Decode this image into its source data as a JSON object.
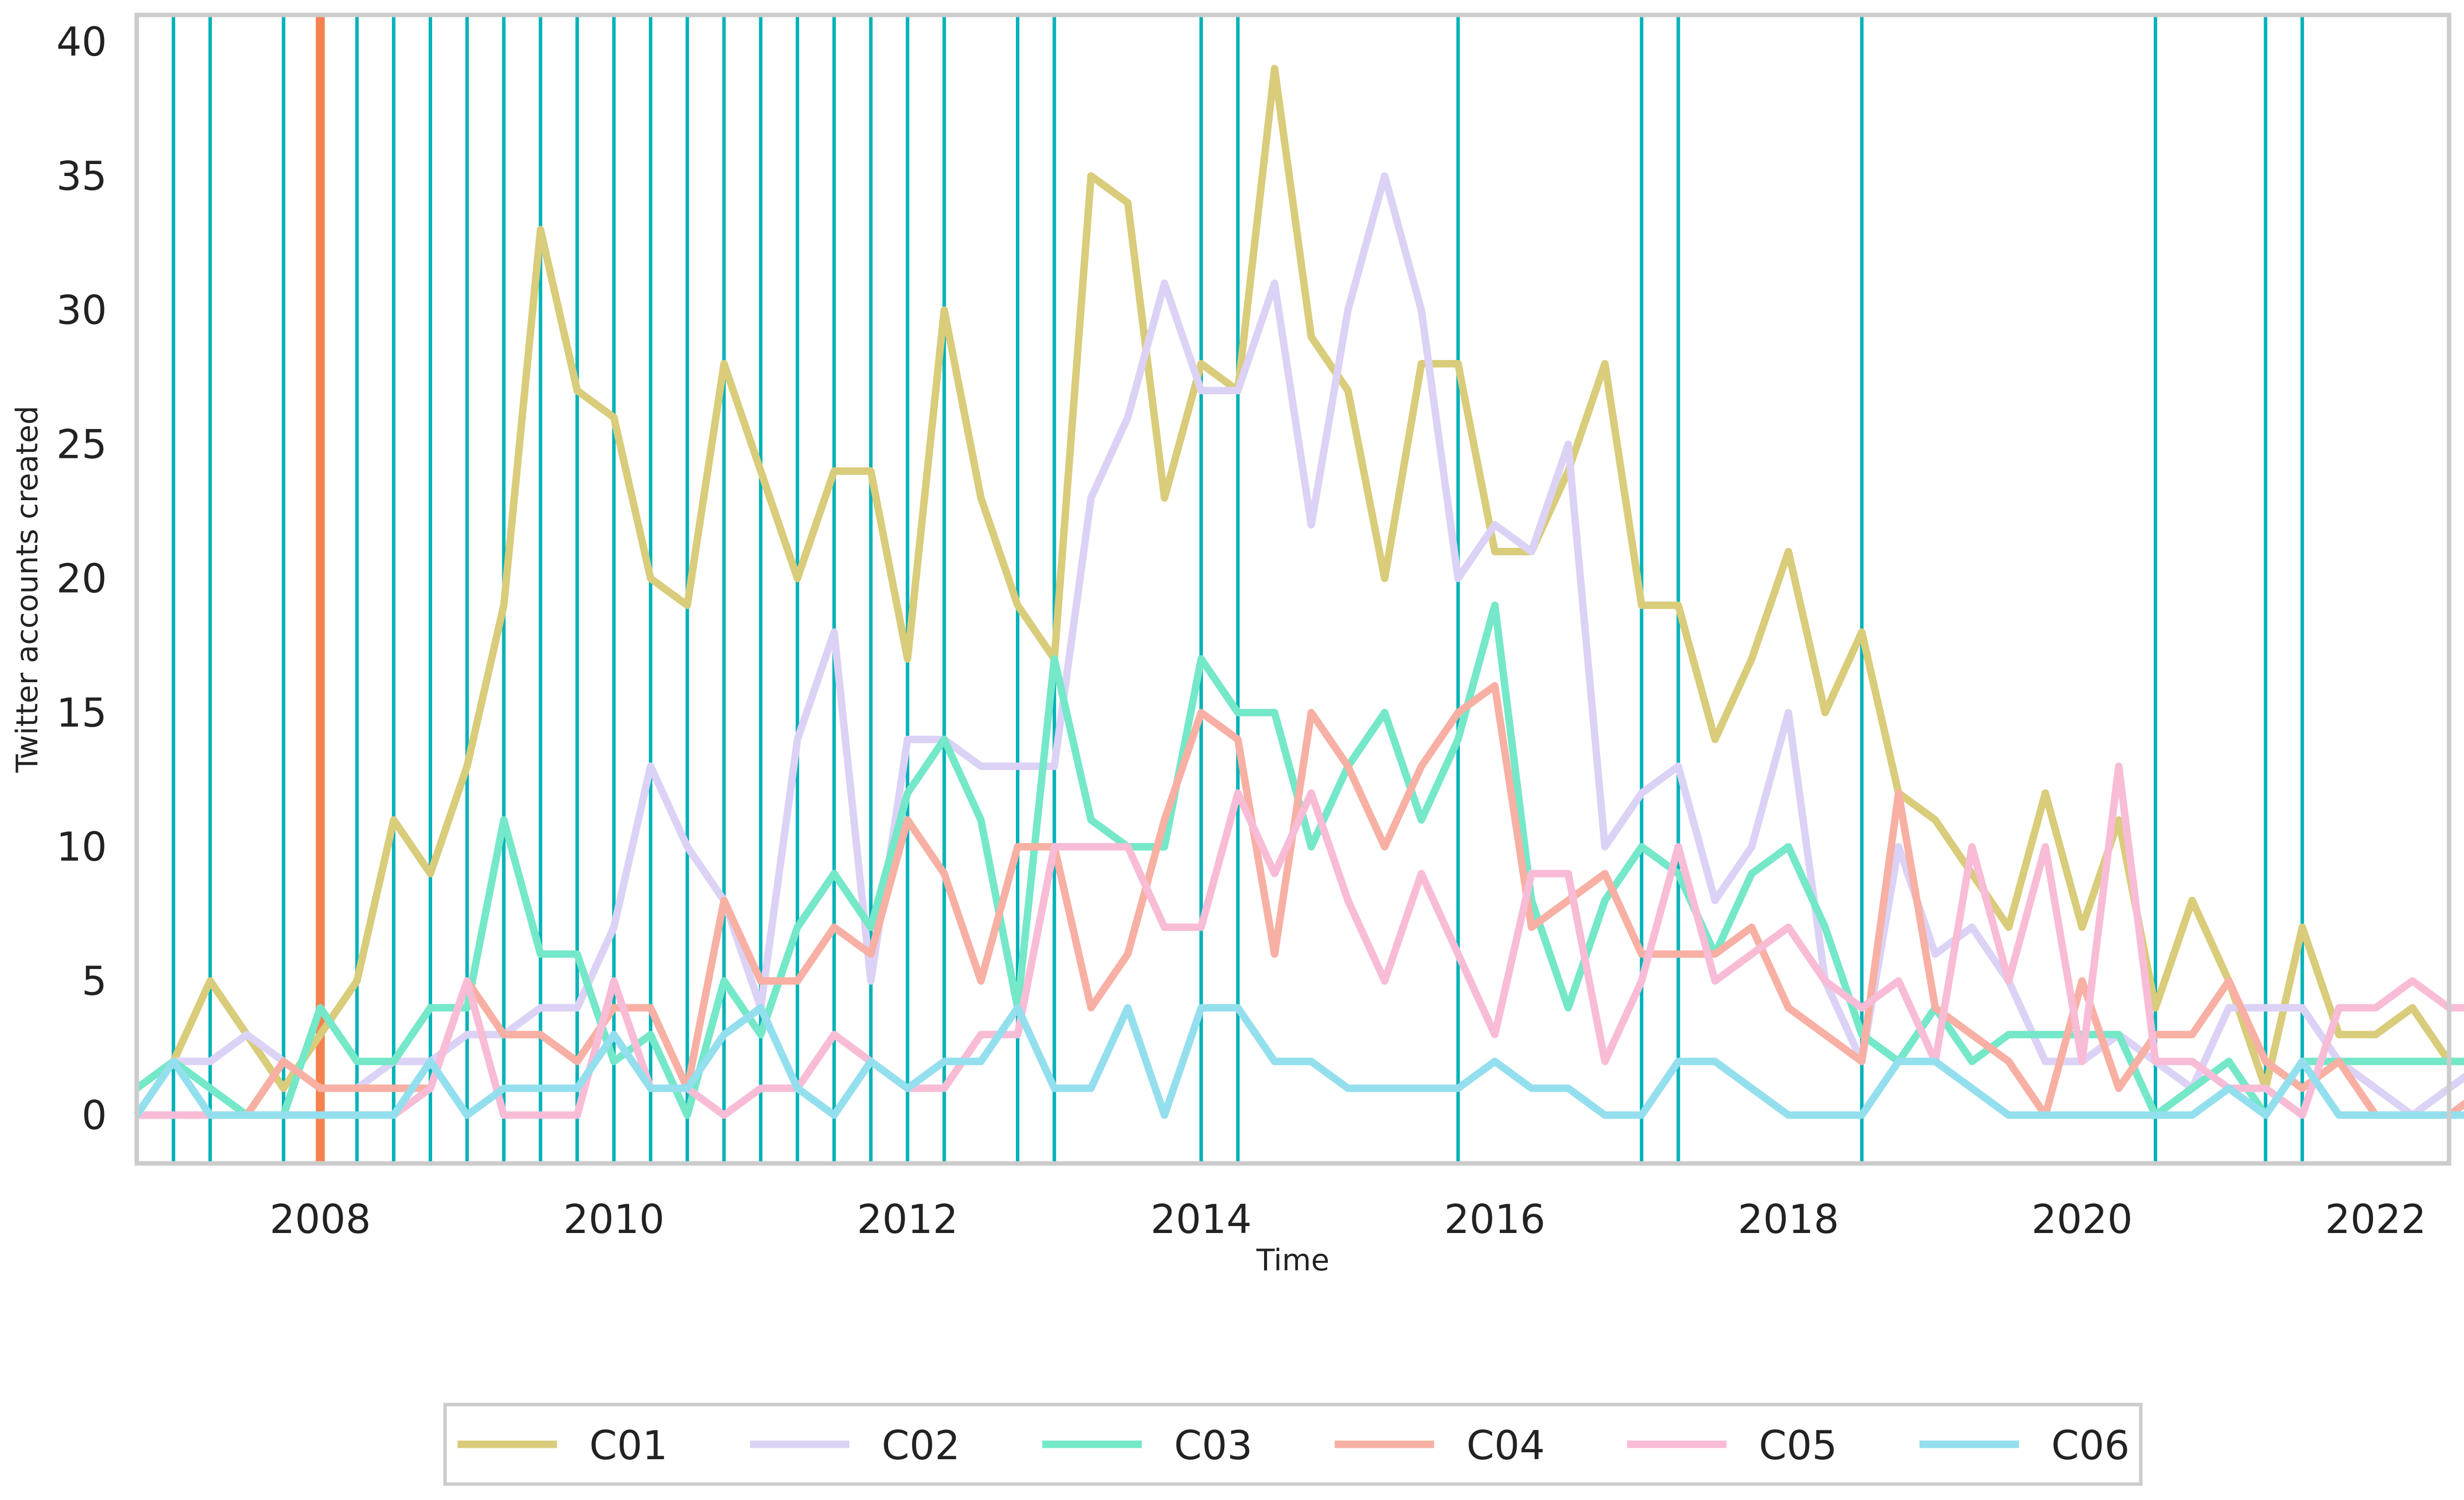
{
  "chart_data": {
    "type": "line",
    "title": "",
    "xlabel": "Time",
    "ylabel": "Twitter accounts created",
    "x_start": 2006.75,
    "x_step": 0.25,
    "xlim": [
      2006.75,
      2022.5
    ],
    "ylim": [
      -1.8,
      41
    ],
    "xticks": [
      2008,
      2010,
      2012,
      2014,
      2016,
      2018,
      2020,
      2022
    ],
    "yticks": [
      0,
      5,
      10,
      15,
      20,
      25,
      30,
      35,
      40
    ],
    "grid": false,
    "legend_position": "bottom-center",
    "series": [
      {
        "name": "C01",
        "color": "#d9cc7a",
        "values": [
          1,
          2,
          5,
          3,
          1,
          3,
          5,
          11,
          9,
          13,
          19,
          33,
          27,
          26,
          20,
          19,
          28,
          24,
          20,
          24,
          24,
          17,
          30,
          23,
          19,
          17,
          35,
          34,
          23,
          28,
          27,
          39,
          29,
          27,
          20,
          28,
          28,
          21,
          21,
          24,
          28,
          19,
          19,
          14,
          17,
          21,
          15,
          18,
          12,
          11,
          9,
          7,
          12,
          7,
          11,
          4,
          8,
          5,
          1,
          7,
          3,
          3,
          4,
          2,
          2
        ]
      },
      {
        "name": "C02",
        "color": "#dcd2f5",
        "values": [
          0,
          2,
          2,
          3,
          2,
          1,
          1,
          2,
          2,
          3,
          3,
          4,
          4,
          7,
          13,
          10,
          8,
          4,
          14,
          18,
          5,
          14,
          14,
          13,
          13,
          13,
          23,
          26,
          31,
          27,
          27,
          31,
          22,
          30,
          35,
          30,
          20,
          22,
          21,
          25,
          10,
          12,
          13,
          8,
          10,
          15,
          5,
          2,
          10,
          6,
          7,
          5,
          2,
          2,
          3,
          2,
          1,
          4,
          4,
          4,
          2,
          1,
          0,
          1,
          2
        ]
      },
      {
        "name": "C03",
        "color": "#74e8c8",
        "values": [
          1,
          2,
          1,
          0,
          0,
          4,
          2,
          2,
          4,
          4,
          11,
          6,
          6,
          2,
          3,
          0,
          5,
          3,
          7,
          9,
          7,
          12,
          14,
          11,
          4,
          17,
          11,
          10,
          10,
          17,
          15,
          15,
          10,
          13,
          15,
          11,
          14,
          19,
          8,
          4,
          8,
          10,
          9,
          6,
          9,
          10,
          7,
          3,
          2,
          4,
          2,
          3,
          3,
          3,
          3,
          0,
          1,
          2,
          0,
          2,
          2,
          2,
          2,
          2,
          2
        ]
      },
      {
        "name": "C04",
        "color": "#f7b0a3",
        "values": [
          0,
          0,
          0,
          0,
          2,
          1,
          1,
          1,
          1,
          5,
          3,
          3,
          2,
          4,
          4,
          1,
          8,
          5,
          5,
          7,
          6,
          11,
          9,
          5,
          10,
          10,
          4,
          6,
          11,
          15,
          14,
          6,
          15,
          13,
          10,
          13,
          15,
          16,
          7,
          8,
          9,
          6,
          6,
          6,
          7,
          4,
          3,
          2,
          12,
          4,
          3,
          2,
          0,
          5,
          1,
          3,
          3,
          5,
          2,
          1,
          2,
          0,
          0,
          0,
          1
        ]
      },
      {
        "name": "C05",
        "color": "#f8bcd6",
        "values": [
          0,
          0,
          0,
          0,
          0,
          0,
          0,
          0,
          1,
          5,
          0,
          0,
          0,
          5,
          1,
          1,
          0,
          1,
          1,
          3,
          2,
          1,
          1,
          3,
          3,
          10,
          10,
          10,
          7,
          7,
          12,
          9,
          12,
          8,
          5,
          9,
          6,
          3,
          9,
          9,
          2,
          5,
          10,
          5,
          6,
          7,
          5,
          4,
          5,
          2,
          10,
          5,
          10,
          2,
          13,
          2,
          2,
          1,
          1,
          0,
          4,
          4,
          5,
          4,
          4
        ]
      },
      {
        "name": "C06",
        "color": "#93dfee",
        "values": [
          0,
          2,
          0,
          0,
          0,
          0,
          0,
          0,
          2,
          0,
          1,
          1,
          1,
          3,
          1,
          1,
          3,
          4,
          1,
          0,
          2,
          1,
          2,
          2,
          4,
          1,
          1,
          4,
          0,
          4,
          4,
          2,
          2,
          1,
          1,
          1,
          1,
          2,
          1,
          1,
          0,
          0,
          2,
          2,
          1,
          0,
          0,
          0,
          2,
          2,
          1,
          0,
          0,
          0,
          0,
          0,
          0,
          1,
          0,
          2,
          0,
          0,
          0,
          0,
          0
        ]
      }
    ],
    "event_lines": {
      "teal": {
        "color": "#00b2b8",
        "x": [
          2007.0,
          2007.25,
          2007.75,
          2008.25,
          2008.5,
          2008.75,
          2009.0,
          2009.25,
          2009.5,
          2009.75,
          2010.0,
          2010.25,
          2010.5,
          2010.75,
          2011.0,
          2011.25,
          2011.5,
          2011.75,
          2012.0,
          2012.25,
          2012.75,
          2013.0,
          2014.0,
          2014.25,
          2015.75,
          2017.0,
          2017.25,
          2018.5,
          2020.5,
          2021.25,
          2021.5
        ]
      },
      "orange": {
        "color": "#f4824f",
        "x": [
          2008.0
        ]
      }
    },
    "legend": [
      {
        "name": "C01",
        "color": "#d9cc7a"
      },
      {
        "name": "C02",
        "color": "#dcd2f5"
      },
      {
        "name": "C03",
        "color": "#74e8c8"
      },
      {
        "name": "C04",
        "color": "#f7b0a3"
      },
      {
        "name": "C05",
        "color": "#f8bcd6"
      },
      {
        "name": "C06",
        "color": "#93dfee"
      }
    ]
  }
}
